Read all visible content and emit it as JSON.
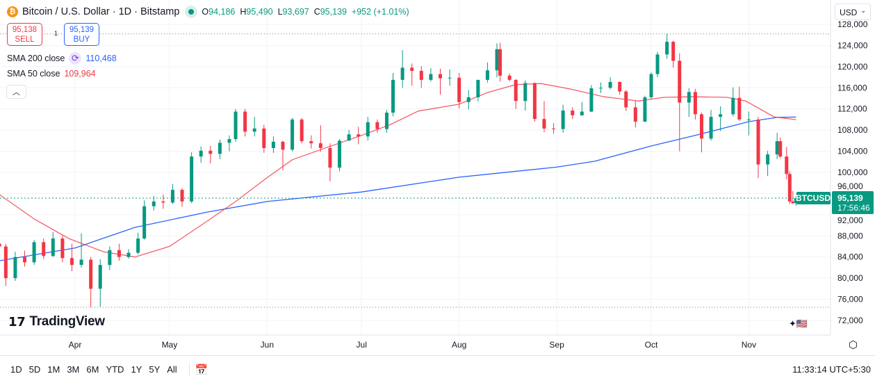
{
  "header": {
    "symbol_icon": "bitcoin-icon",
    "title": "Bitcoin / U.S. Dollar · 1D · Bitstamp",
    "market_status": "open",
    "o_label": "O",
    "o": "94,186",
    "h_label": "H",
    "h": "95,490",
    "l_label": "L",
    "l": "93,697",
    "c_label": "C",
    "c": "95,139",
    "change": "+952 (+1.01%)"
  },
  "trade": {
    "sell_price": "95,138",
    "sell_label": "SELL",
    "spread": "1",
    "buy_price": "95,139",
    "buy_label": "BUY"
  },
  "indicators": [
    {
      "label": "SMA 200 close",
      "value": "110,468",
      "color": "#2962ff"
    },
    {
      "label": "SMA 50 close",
      "value": "109,964",
      "color": "#f23645"
    }
  ],
  "collapse_icon": "chevron-up-icon",
  "currency": "USD",
  "logo": "TradingView",
  "price_label": {
    "symbol": "BTCUSD",
    "price": "95,139",
    "countdown": "17:56:46"
  },
  "range_buttons": [
    "1D",
    "5D",
    "1M",
    "3M",
    "6M",
    "YTD",
    "1Y",
    "5Y",
    "All"
  ],
  "clock": "11:33:14 UTC+5:30",
  "colors": {
    "up": "#089981",
    "down": "#f23645",
    "sma200": "#2962ff",
    "sma50": "#f23645"
  },
  "chart_data": {
    "type": "candlestick",
    "title": "Bitcoin / U.S. Dollar · 1D · Bitstamp",
    "ylim": [
      70600,
      132600
    ],
    "y_ticks": [
      72000,
      76000,
      80000,
      84000,
      88000,
      92000,
      96000,
      100000,
      104000,
      108000,
      112000,
      116000,
      120000,
      124000,
      128000
    ],
    "x_ticks": [
      "Apr",
      "May",
      "Jun",
      "Jul",
      "Aug",
      "Sep",
      "Oct",
      "Nov"
    ],
    "grid": true,
    "visible_high": 126200,
    "visible_low": 74500,
    "last_price": 95139,
    "candles_fields": [
      "date",
      "open",
      "high",
      "low",
      "close"
    ],
    "candles": [
      [
        "Mar 8",
        86500,
        87000,
        85800,
        86000
      ],
      [
        "Mar 10",
        86000,
        86500,
        78500,
        80000
      ],
      [
        "Mar 13",
        80000,
        85000,
        79500,
        84000
      ],
      [
        "Mar 16",
        84000,
        85200,
        82200,
        83000
      ],
      [
        "Mar 19",
        83000,
        87200,
        82500,
        86800
      ],
      [
        "Mar 22",
        86800,
        87500,
        83600,
        84200
      ],
      [
        "Mar 25",
        84200,
        88700,
        84000,
        87500
      ],
      [
        "Mar 28",
        87500,
        88000,
        83000,
        83800
      ],
      [
        "Mar 31",
        83800,
        86500,
        81300,
        82500
      ],
      [
        "Apr 3",
        82500,
        88500,
        82000,
        83500
      ],
      [
        "Apr 6",
        83500,
        84000,
        74500,
        78000
      ],
      [
        "Apr 9",
        78000,
        83600,
        74600,
        82500
      ],
      [
        "Apr 12",
        82500,
        86000,
        81500,
        85300
      ],
      [
        "Apr 15",
        85300,
        86500,
        83300,
        84000
      ],
      [
        "Apr 18",
        84000,
        85500,
        83700,
        84800
      ],
      [
        "Apr 21",
        84800,
        88600,
        84500,
        87500
      ],
      [
        "Apr 23",
        87500,
        94700,
        87300,
        93600
      ],
      [
        "Apr 26",
        93600,
        95500,
        92800,
        94500
      ],
      [
        "Apr 29",
        94500,
        95800,
        93100,
        94300
      ],
      [
        "May 2",
        94300,
        97800,
        94000,
        96700
      ],
      [
        "May 5",
        96700,
        97000,
        93500,
        94500
      ],
      [
        "May 8",
        94500,
        103800,
        94200,
        103000
      ],
      [
        "May 11",
        103000,
        104900,
        101800,
        104100
      ],
      [
        "May 14",
        104100,
        105000,
        101700,
        103500
      ],
      [
        "May 17",
        103500,
        106200,
        102500,
        105600
      ],
      [
        "May 20",
        105600,
        107000,
        104000,
        106300
      ],
      [
        "May 22",
        106300,
        112000,
        105800,
        111500
      ],
      [
        "May 25",
        111500,
        112000,
        106800,
        107700
      ],
      [
        "May 28",
        107700,
        110500,
        106800,
        108300
      ],
      [
        "May 31",
        108300,
        109000,
        103700,
        104600
      ],
      [
        "Jun 3",
        104600,
        106800,
        103700,
        105800
      ],
      [
        "Jun 6",
        105800,
        106000,
        100400,
        104300
      ],
      [
        "Jun 9",
        104300,
        110300,
        104000,
        110000
      ],
      [
        "Jun 12",
        110000,
        110300,
        105500,
        105900
      ],
      [
        "Jun 15",
        105900,
        107000,
        104500,
        105500
      ],
      [
        "Jun 18",
        105500,
        108900,
        103900,
        104600
      ],
      [
        "Jun 21",
        104600,
        105500,
        98300,
        100900
      ],
      [
        "Jun 24",
        100900,
        106300,
        100200,
        106000
      ],
      [
        "Jun 27",
        106000,
        108000,
        106000,
        107200
      ],
      [
        "Jun 30",
        107200,
        108600,
        105300,
        106800
      ],
      [
        "Jul 3",
        106800,
        110500,
        106000,
        109500
      ],
      [
        "Jul 6",
        109500,
        110000,
        107500,
        108200
      ],
      [
        "Jul 9",
        108200,
        111800,
        107500,
        111300
      ],
      [
        "Jul 11",
        111300,
        118800,
        110600,
        117500
      ],
      [
        "Jul 14",
        117500,
        123100,
        116000,
        119800
      ],
      [
        "Jul 17",
        119800,
        120600,
        116400,
        119200
      ],
      [
        "Jul 20",
        119200,
        120100,
        116000,
        117500
      ],
      [
        "Jul 23",
        117500,
        119700,
        117200,
        118600
      ],
      [
        "Jul 26",
        118600,
        119600,
        114700,
        117800
      ],
      [
        "Jul 29",
        117800,
        119500,
        116400,
        117900
      ],
      [
        "Aug 1",
        117900,
        118800,
        112100,
        113300
      ],
      [
        "Aug 4",
        113300,
        115600,
        111900,
        114200
      ],
      [
        "Aug 7",
        114200,
        117500,
        113400,
        117500
      ],
      [
        "Aug 10",
        117500,
        120800,
        117000,
        119300
      ],
      [
        "Aug 13",
        119300,
        124400,
        118000,
        123300
      ],
      [
        "Aug 14",
        123300,
        124500,
        117200,
        118300
      ],
      [
        "Aug 17",
        118300,
        118700,
        117200,
        117500
      ],
      [
        "Aug 19",
        117500,
        117600,
        112000,
        113500
      ],
      [
        "Aug 22",
        113500,
        117400,
        111700,
        116900
      ],
      [
        "Aug 25",
        116900,
        117000,
        109600,
        110100
      ],
      [
        "Aug 28",
        110100,
        113500,
        107600,
        108300
      ],
      [
        "Aug 31",
        108300,
        109300,
        107300,
        108200
      ],
      [
        "Sep 3",
        108200,
        112800,
        107500,
        111700
      ],
      [
        "Sep 6",
        111700,
        112300,
        110100,
        110800
      ],
      [
        "Sep 9",
        110800,
        113300,
        110700,
        111500
      ],
      [
        "Sep 12",
        111500,
        116500,
        111400,
        115900
      ],
      [
        "Sep 15",
        115900,
        117000,
        115000,
        116000
      ],
      [
        "Sep 18",
        116000,
        118000,
        115700,
        117100
      ],
      [
        "Sep 21",
        117100,
        117200,
        114700,
        115300
      ],
      [
        "Sep 23",
        115300,
        115600,
        111600,
        112300
      ],
      [
        "Sep 26",
        112300,
        113600,
        108500,
        109600
      ],
      [
        "Sep 29",
        109600,
        114500,
        109500,
        114200
      ],
      [
        "Oct 1",
        114200,
        118900,
        113900,
        118600
      ],
      [
        "Oct 3",
        118600,
        122800,
        118000,
        122300
      ],
      [
        "Oct 6",
        122300,
        126200,
        121500,
        124700
      ],
      [
        "Oct 8",
        124700,
        124900,
        119800,
        121100
      ],
      [
        "Oct 10",
        121100,
        122500,
        104000,
        113200
      ],
      [
        "Oct 13",
        113200,
        115900,
        110500,
        115200
      ],
      [
        "Oct 15",
        115200,
        115800,
        110000,
        111000
      ],
      [
        "Oct 17",
        111000,
        111300,
        103800,
        106400
      ],
      [
        "Oct 20",
        106400,
        111800,
        106000,
        110500
      ],
      [
        "Oct 23",
        110500,
        112500,
        107800,
        111000
      ],
      [
        "Oct 27",
        111000,
        116100,
        110600,
        114100
      ],
      [
        "Oct 29",
        114100,
        116200,
        109700,
        110000
      ],
      [
        "Nov 1",
        110000,
        111500,
        107000,
        110000
      ],
      [
        "Nov 4",
        110000,
        110500,
        98900,
        101500
      ],
      [
        "Nov 7",
        101500,
        104100,
        99300,
        103400
      ],
      [
        "Nov 10",
        103400,
        107500,
        102500,
        105900
      ],
      [
        "Nov 11",
        105900,
        106600,
        102700,
        103000
      ],
      [
        "Nov 13",
        103000,
        104800,
        98700,
        99700
      ],
      [
        "Nov 14",
        99700,
        100200,
        94000,
        94500
      ],
      [
        "Nov 15",
        94500,
        96500,
        94000,
        94186
      ],
      [
        "Nov 16",
        94186,
        95490,
        93697,
        95139
      ]
    ],
    "series": [
      {
        "name": "SMA 200 close",
        "points": [
          [
            "Mar 8",
            83300
          ],
          [
            "Apr 1",
            85700
          ],
          [
            "Apr 20",
            89600
          ],
          [
            "May 13",
            92500
          ],
          [
            "Jun 1",
            94500
          ],
          [
            "Jul 1",
            96300
          ],
          [
            "Aug 1",
            99100
          ],
          [
            "Sep 1",
            101000
          ],
          [
            "Sep 13",
            102100
          ],
          [
            "Oct 1",
            105000
          ],
          [
            "Oct 15",
            107000
          ],
          [
            "Nov 1",
            109600
          ],
          [
            "Nov 10",
            110400
          ],
          [
            "Nov 16",
            110468
          ]
        ]
      },
      {
        "name": "SMA 50 close",
        "points": [
          [
            "Mar 8",
            95800
          ],
          [
            "Mar 19",
            91200
          ],
          [
            "Mar 30",
            87500
          ],
          [
            "Apr 10",
            85000
          ],
          [
            "Apr 20",
            84000
          ],
          [
            "May 1",
            86000
          ],
          [
            "May 13",
            90800
          ],
          [
            "May 22",
            94500
          ],
          [
            "Jun 1",
            99000
          ],
          [
            "Jun 9",
            102400
          ],
          [
            "Jun 18",
            104300
          ],
          [
            "Jul 1",
            107000
          ],
          [
            "Jul 10",
            109000
          ],
          [
            "Jul 19",
            111600
          ],
          [
            "Aug 1",
            112900
          ],
          [
            "Aug 10",
            115100
          ],
          [
            "Aug 19",
            116600
          ],
          [
            "Aug 27",
            116800
          ],
          [
            "Sep 5",
            115800
          ],
          [
            "Sep 16",
            114300
          ],
          [
            "Sep 27",
            113500
          ],
          [
            "Oct 5",
            114200
          ],
          [
            "Oct 14",
            114300
          ],
          [
            "Oct 25",
            114200
          ],
          [
            "Oct 31",
            113500
          ],
          [
            "Nov 9",
            110500
          ],
          [
            "Nov 16",
            109964
          ]
        ]
      }
    ]
  }
}
